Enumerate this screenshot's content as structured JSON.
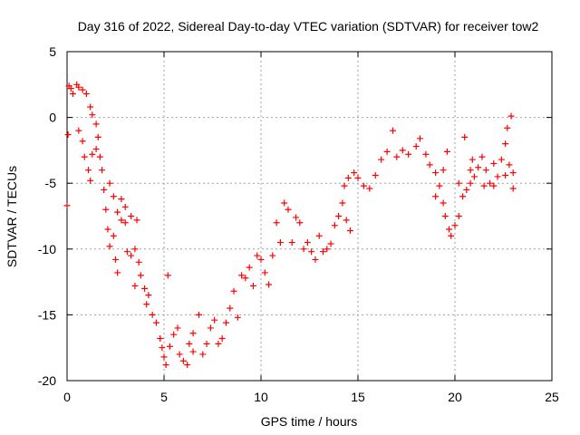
{
  "chart_data": {
    "type": "scatter",
    "title": "Day 316 of 2022, Sidereal Day-to-day VTEC variation (SDTVAR) for receiver tow2",
    "xlabel": "GPS time / hours",
    "ylabel": "SDTVAR / TECUs",
    "xlim": [
      0,
      25
    ],
    "ylim": [
      -20,
      5
    ],
    "xticks": [
      0,
      5,
      10,
      15,
      20,
      25
    ],
    "yticks": [
      5,
      0,
      -5,
      -10,
      -15,
      -20
    ],
    "grid": true,
    "marker": "+",
    "color": "#ff0000",
    "series": [
      {
        "name": "tow2",
        "points": [
          [
            0.0,
            -6.7
          ],
          [
            0.05,
            -1.3
          ],
          [
            0.1,
            2.4
          ],
          [
            0.2,
            2.2
          ],
          [
            0.3,
            1.8
          ],
          [
            0.5,
            2.5
          ],
          [
            0.6,
            2.3
          ],
          [
            0.8,
            2.1
          ],
          [
            1.0,
            1.8
          ],
          [
            1.2,
            0.8
          ],
          [
            1.3,
            0.2
          ],
          [
            1.5,
            -0.5
          ],
          [
            0.6,
            -1.0
          ],
          [
            0.8,
            -1.8
          ],
          [
            0.9,
            -3.0
          ],
          [
            1.1,
            -4.0
          ],
          [
            1.2,
            -4.8
          ],
          [
            1.3,
            -2.8
          ],
          [
            1.5,
            -2.4
          ],
          [
            1.6,
            -1.5
          ],
          [
            1.7,
            -3.0
          ],
          [
            1.8,
            -4.0
          ],
          [
            1.9,
            -5.5
          ],
          [
            2.0,
            -7.0
          ],
          [
            2.1,
            -8.5
          ],
          [
            2.2,
            -9.8
          ],
          [
            2.4,
            -9.0
          ],
          [
            2.5,
            -10.8
          ],
          [
            2.6,
            -11.8
          ],
          [
            2.2,
            -5.0
          ],
          [
            2.4,
            -6.0
          ],
          [
            2.6,
            -7.2
          ],
          [
            2.8,
            -7.8
          ],
          [
            3.0,
            -8.0
          ],
          [
            3.1,
            -10.2
          ],
          [
            3.3,
            -10.5
          ],
          [
            3.5,
            -10.0
          ],
          [
            2.8,
            -6.2
          ],
          [
            3.0,
            -6.8
          ],
          [
            3.3,
            -7.5
          ],
          [
            3.6,
            -7.8
          ],
          [
            3.5,
            -12.8
          ],
          [
            3.7,
            -11.0
          ],
          [
            3.8,
            -12.0
          ],
          [
            4.0,
            -13.0
          ],
          [
            4.1,
            -14.2
          ],
          [
            4.2,
            -13.5
          ],
          [
            4.4,
            -15.0
          ],
          [
            4.6,
            -15.6
          ],
          [
            4.8,
            -16.8
          ],
          [
            4.9,
            -17.5
          ],
          [
            5.0,
            -18.2
          ],
          [
            5.1,
            -18.8
          ],
          [
            5.2,
            -12.0
          ],
          [
            5.3,
            -17.4
          ],
          [
            5.5,
            -16.5
          ],
          [
            5.7,
            -16.0
          ],
          [
            5.8,
            -18.0
          ],
          [
            6.0,
            -18.5
          ],
          [
            6.2,
            -18.8
          ],
          [
            6.3,
            -17.2
          ],
          [
            6.5,
            -16.4
          ],
          [
            6.8,
            -15.0
          ],
          [
            6.5,
            -17.8
          ],
          [
            7.0,
            -18.0
          ],
          [
            7.2,
            -17.2
          ],
          [
            7.4,
            -16.0
          ],
          [
            7.6,
            -15.4
          ],
          [
            7.8,
            -17.2
          ],
          [
            8.0,
            -16.8
          ],
          [
            8.2,
            -15.6
          ],
          [
            8.4,
            -14.5
          ],
          [
            8.6,
            -13.2
          ],
          [
            8.8,
            -15.2
          ],
          [
            9.0,
            -12.0
          ],
          [
            9.2,
            -12.2
          ],
          [
            9.4,
            -11.4
          ],
          [
            9.6,
            -12.8
          ],
          [
            9.8,
            -10.5
          ],
          [
            10.0,
            -10.8
          ],
          [
            10.2,
            -11.8
          ],
          [
            10.4,
            -12.7
          ],
          [
            10.6,
            -10.5
          ],
          [
            10.8,
            -8.0
          ],
          [
            11.0,
            -9.5
          ],
          [
            11.2,
            -6.5
          ],
          [
            11.4,
            -7.0
          ],
          [
            11.6,
            -9.5
          ],
          [
            11.8,
            -7.6
          ],
          [
            12.0,
            -8.0
          ],
          [
            12.2,
            -10.0
          ],
          [
            12.4,
            -9.5
          ],
          [
            12.6,
            -10.2
          ],
          [
            12.8,
            -10.8
          ],
          [
            13.0,
            -9.0
          ],
          [
            13.2,
            -10.2
          ],
          [
            13.4,
            -10.0
          ],
          [
            13.6,
            -9.6
          ],
          [
            13.8,
            -8.2
          ],
          [
            14.0,
            -7.5
          ],
          [
            14.2,
            -6.5
          ],
          [
            14.4,
            -7.8
          ],
          [
            14.6,
            -8.6
          ],
          [
            14.3,
            -5.2
          ],
          [
            14.5,
            -4.6
          ],
          [
            14.8,
            -4.2
          ],
          [
            15.0,
            -4.6
          ],
          [
            15.3,
            -5.2
          ],
          [
            15.6,
            -5.4
          ],
          [
            15.9,
            -4.4
          ],
          [
            16.2,
            -3.2
          ],
          [
            16.5,
            -2.6
          ],
          [
            16.8,
            -1.0
          ],
          [
            17.0,
            -3.0
          ],
          [
            17.3,
            -2.5
          ],
          [
            17.6,
            -2.8
          ],
          [
            18.0,
            -2.2
          ],
          [
            18.2,
            -1.6
          ],
          [
            18.5,
            -2.8
          ],
          [
            18.7,
            -3.6
          ],
          [
            19.0,
            -4.2
          ],
          [
            19.2,
            -5.2
          ],
          [
            19.4,
            -6.5
          ],
          [
            19.5,
            -7.5
          ],
          [
            19.7,
            -8.5
          ],
          [
            19.8,
            -9.0
          ],
          [
            20.0,
            -8.2
          ],
          [
            20.2,
            -7.5
          ],
          [
            20.4,
            -6.0
          ],
          [
            20.5,
            -1.5
          ],
          [
            20.6,
            -5.5
          ],
          [
            20.8,
            -5.0
          ],
          [
            21.0,
            -4.5
          ],
          [
            21.2,
            -3.8
          ],
          [
            21.4,
            -3.0
          ],
          [
            21.6,
            -4.0
          ],
          [
            21.8,
            -5.0
          ],
          [
            22.0,
            -5.2
          ],
          [
            22.2,
            -4.5
          ],
          [
            22.4,
            -3.2
          ],
          [
            22.6,
            -2.0
          ],
          [
            22.7,
            -0.8
          ],
          [
            22.8,
            -3.6
          ],
          [
            22.9,
            0.1
          ],
          [
            23.0,
            -5.4
          ],
          [
            19.0,
            -6.0
          ],
          [
            19.4,
            -4.0
          ],
          [
            20.2,
            -5.0
          ],
          [
            20.8,
            -4.0
          ],
          [
            21.5,
            -5.2
          ],
          [
            22.0,
            -3.5
          ],
          [
            22.6,
            -4.4
          ],
          [
            23.0,
            -4.2
          ],
          [
            19.6,
            -2.6
          ],
          [
            20.9,
            -3.2
          ]
        ]
      }
    ]
  }
}
